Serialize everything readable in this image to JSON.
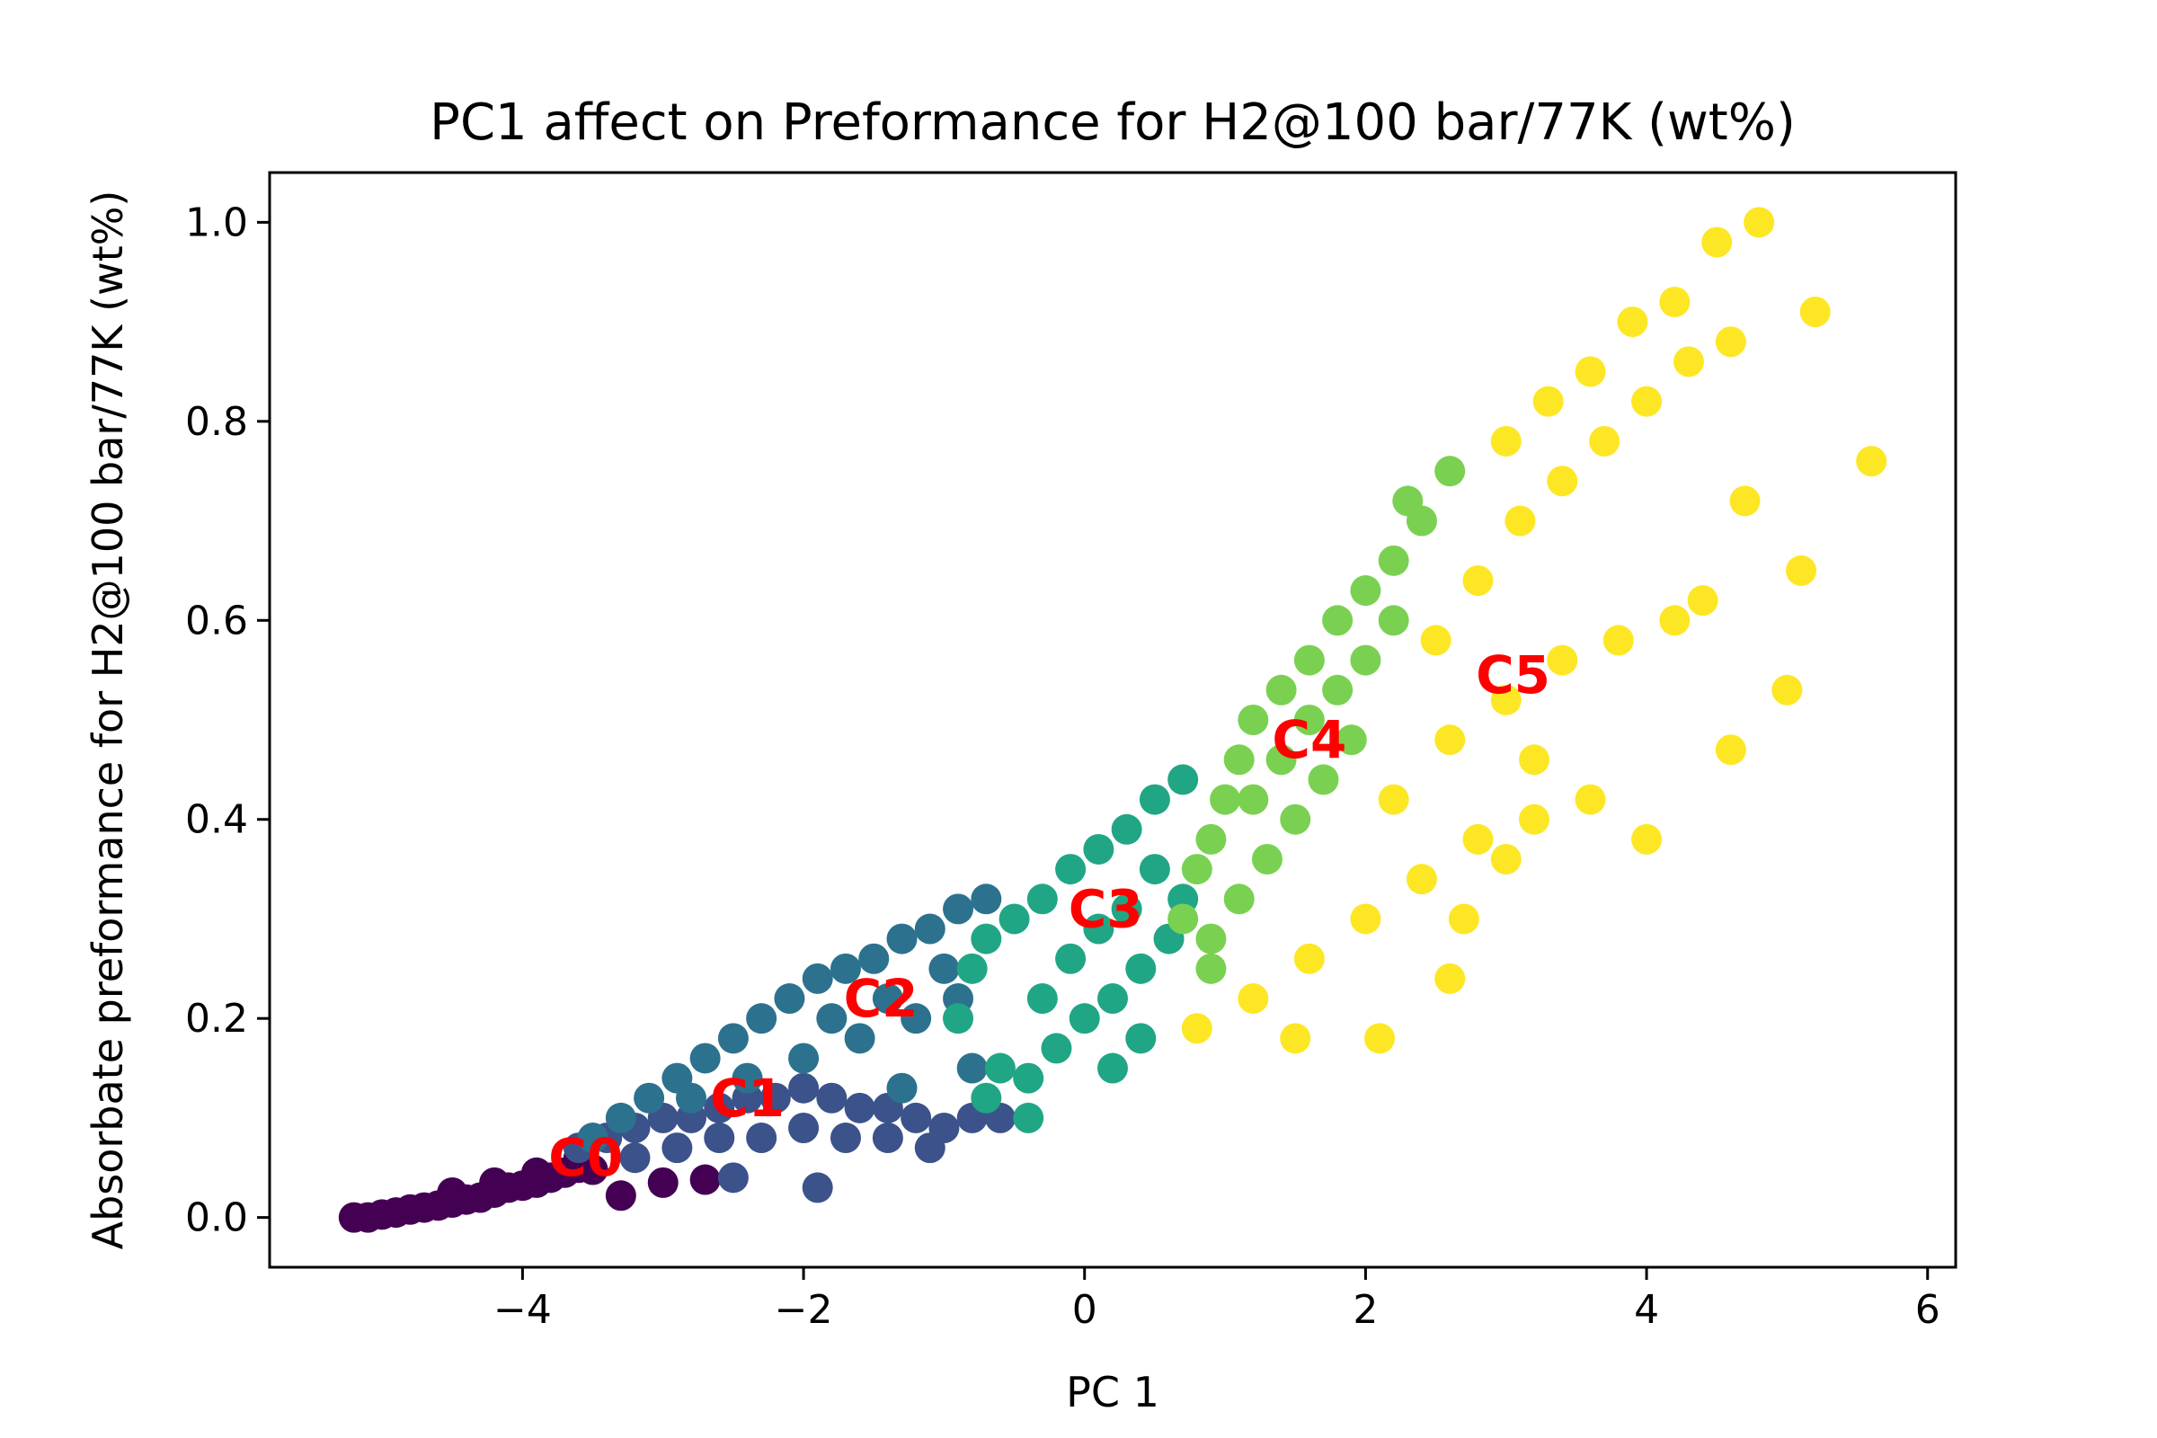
{
  "chart_data": {
    "type": "scatter",
    "title": "PC1 affect on Preformance for H2@100 bar/77K (wt%)",
    "xlabel": "PC 1",
    "ylabel": "Absorbate preformance for H2@100 bar/77K (wt%)",
    "xlim": [
      -5.8,
      6.2
    ],
    "ylim": [
      -0.05,
      1.05
    ],
    "xticks": [
      -4,
      -2,
      0,
      2,
      4,
      6
    ],
    "xtick_labels": [
      "−4",
      "−2",
      "0",
      "2",
      "4",
      "6"
    ],
    "yticks": [
      0.0,
      0.2,
      0.4,
      0.6,
      0.8,
      1.0
    ],
    "ytick_labels": [
      "0.0",
      "0.2",
      "0.4",
      "0.6",
      "0.8",
      "1.0"
    ],
    "grid": false,
    "series": [
      {
        "label": "C0",
        "color": "#440154",
        "points": [
          [
            -5.2,
            0.0
          ],
          [
            -5.1,
            0.0
          ],
          [
            -5.0,
            0.003
          ],
          [
            -4.9,
            0.005
          ],
          [
            -4.8,
            0.008
          ],
          [
            -4.7,
            0.01
          ],
          [
            -4.6,
            0.012
          ],
          [
            -4.5,
            0.015
          ],
          [
            -4.4,
            0.018
          ],
          [
            -4.3,
            0.02
          ],
          [
            -4.2,
            0.025
          ],
          [
            -4.1,
            0.03
          ],
          [
            -4.0,
            0.032
          ],
          [
            -3.9,
            0.035
          ],
          [
            -3.8,
            0.04
          ],
          [
            -3.7,
            0.045
          ],
          [
            -3.6,
            0.05
          ],
          [
            -3.5,
            0.048
          ],
          [
            -3.3,
            0.022
          ],
          [
            -3.0,
            0.035
          ],
          [
            -2.7,
            0.038
          ],
          [
            -4.5,
            0.025
          ],
          [
            -4.2,
            0.035
          ],
          [
            -3.9,
            0.045
          ],
          [
            -3.6,
            0.06
          ]
        ]
      },
      {
        "label": "C1",
        "color": "#3b528b",
        "points": [
          [
            -3.6,
            0.07
          ],
          [
            -3.4,
            0.08
          ],
          [
            -3.2,
            0.09
          ],
          [
            -3.0,
            0.1
          ],
          [
            -2.8,
            0.1
          ],
          [
            -2.6,
            0.11
          ],
          [
            -2.4,
            0.12
          ],
          [
            -2.2,
            0.12
          ],
          [
            -2.0,
            0.13
          ],
          [
            -1.8,
            0.12
          ],
          [
            -1.6,
            0.11
          ],
          [
            -1.4,
            0.11
          ],
          [
            -1.2,
            0.1
          ],
          [
            -1.0,
            0.09
          ],
          [
            -0.8,
            0.1
          ],
          [
            -0.6,
            0.1
          ],
          [
            -3.2,
            0.06
          ],
          [
            -2.9,
            0.07
          ],
          [
            -2.6,
            0.08
          ],
          [
            -2.3,
            0.08
          ],
          [
            -2.0,
            0.09
          ],
          [
            -1.7,
            0.08
          ],
          [
            -1.4,
            0.08
          ],
          [
            -1.1,
            0.07
          ],
          [
            -2.5,
            0.04
          ],
          [
            -1.9,
            0.03
          ]
        ]
      },
      {
        "label": "C2",
        "color": "#2c728e",
        "points": [
          [
            -3.5,
            0.08
          ],
          [
            -3.3,
            0.1
          ],
          [
            -3.1,
            0.12
          ],
          [
            -2.9,
            0.14
          ],
          [
            -2.7,
            0.16
          ],
          [
            -2.5,
            0.18
          ],
          [
            -2.3,
            0.2
          ],
          [
            -2.1,
            0.22
          ],
          [
            -1.9,
            0.24
          ],
          [
            -1.7,
            0.25
          ],
          [
            -1.5,
            0.26
          ],
          [
            -1.3,
            0.28
          ],
          [
            -1.1,
            0.29
          ],
          [
            -0.9,
            0.31
          ],
          [
            -0.7,
            0.32
          ],
          [
            -2.8,
            0.12
          ],
          [
            -2.4,
            0.14
          ],
          [
            -2.0,
            0.16
          ],
          [
            -1.6,
            0.18
          ],
          [
            -1.2,
            0.2
          ],
          [
            -0.9,
            0.22
          ],
          [
            -1.8,
            0.2
          ],
          [
            -1.4,
            0.22
          ],
          [
            -1.0,
            0.25
          ],
          [
            -0.8,
            0.15
          ],
          [
            -1.3,
            0.13
          ]
        ]
      },
      {
        "label": "C3",
        "color": "#21a685",
        "points": [
          [
            -0.9,
            0.2
          ],
          [
            -0.8,
            0.25
          ],
          [
            -0.7,
            0.28
          ],
          [
            -0.5,
            0.3
          ],
          [
            -0.3,
            0.32
          ],
          [
            -0.1,
            0.35
          ],
          [
            0.1,
            0.37
          ],
          [
            0.3,
            0.39
          ],
          [
            0.5,
            0.42
          ],
          [
            0.7,
            0.44
          ],
          [
            -0.6,
            0.15
          ],
          [
            -0.4,
            0.14
          ],
          [
            -0.2,
            0.17
          ],
          [
            0.0,
            0.2
          ],
          [
            0.2,
            0.22
          ],
          [
            0.4,
            0.25
          ],
          [
            0.6,
            0.28
          ],
          [
            0.7,
            0.32
          ],
          [
            0.5,
            0.35
          ],
          [
            -0.3,
            0.22
          ],
          [
            -0.1,
            0.26
          ],
          [
            0.1,
            0.29
          ],
          [
            0.3,
            0.31
          ],
          [
            0.2,
            0.15
          ],
          [
            0.4,
            0.18
          ],
          [
            -0.7,
            0.12
          ],
          [
            -0.4,
            0.1
          ]
        ]
      },
      {
        "label": "C4",
        "color": "#7ad151",
        "points": [
          [
            0.7,
            0.3
          ],
          [
            0.8,
            0.35
          ],
          [
            0.9,
            0.38
          ],
          [
            1.0,
            0.42
          ],
          [
            1.1,
            0.46
          ],
          [
            1.2,
            0.5
          ],
          [
            1.4,
            0.53
          ],
          [
            1.6,
            0.56
          ],
          [
            1.8,
            0.6
          ],
          [
            2.0,
            0.63
          ],
          [
            2.2,
            0.66
          ],
          [
            2.4,
            0.7
          ],
          [
            2.6,
            0.75
          ],
          [
            0.9,
            0.28
          ],
          [
            1.1,
            0.32
          ],
          [
            1.3,
            0.36
          ],
          [
            1.5,
            0.4
          ],
          [
            1.7,
            0.44
          ],
          [
            1.9,
            0.48
          ],
          [
            1.2,
            0.42
          ],
          [
            1.4,
            0.46
          ],
          [
            1.6,
            0.5
          ],
          [
            1.8,
            0.53
          ],
          [
            2.0,
            0.56
          ],
          [
            2.2,
            0.6
          ],
          [
            0.9,
            0.25
          ],
          [
            2.3,
            0.72
          ]
        ]
      },
      {
        "label": "C5",
        "color": "#fde725",
        "points": [
          [
            0.8,
            0.19
          ],
          [
            1.5,
            0.18
          ],
          [
            2.1,
            0.18
          ],
          [
            2.6,
            0.24
          ],
          [
            1.2,
            0.22
          ],
          [
            1.6,
            0.26
          ],
          [
            2.0,
            0.3
          ],
          [
            2.4,
            0.34
          ],
          [
            2.8,
            0.38
          ],
          [
            3.2,
            0.4
          ],
          [
            3.6,
            0.42
          ],
          [
            4.0,
            0.38
          ],
          [
            2.2,
            0.42
          ],
          [
            2.6,
            0.48
          ],
          [
            3.0,
            0.52
          ],
          [
            3.4,
            0.56
          ],
          [
            3.8,
            0.58
          ],
          [
            4.2,
            0.6
          ],
          [
            2.5,
            0.58
          ],
          [
            2.8,
            0.64
          ],
          [
            3.1,
            0.7
          ],
          [
            3.4,
            0.74
          ],
          [
            3.7,
            0.78
          ],
          [
            4.0,
            0.82
          ],
          [
            4.3,
            0.86
          ],
          [
            4.6,
            0.88
          ],
          [
            3.0,
            0.78
          ],
          [
            3.3,
            0.82
          ],
          [
            3.6,
            0.85
          ],
          [
            3.9,
            0.9
          ],
          [
            4.2,
            0.92
          ],
          [
            4.5,
            0.98
          ],
          [
            4.8,
            1.0
          ],
          [
            5.2,
            0.91
          ],
          [
            5.6,
            0.76
          ],
          [
            5.0,
            0.53
          ],
          [
            4.6,
            0.47
          ],
          [
            4.7,
            0.72
          ],
          [
            5.1,
            0.65
          ],
          [
            4.4,
            0.62
          ],
          [
            3.2,
            0.46
          ],
          [
            2.7,
            0.3
          ],
          [
            3.0,
            0.36
          ]
        ]
      }
    ],
    "annotations": [
      {
        "text": "C0",
        "x": -3.55,
        "y": 0.06
      },
      {
        "text": "C1",
        "x": -2.4,
        "y": 0.12
      },
      {
        "text": "C2",
        "x": -1.45,
        "y": 0.22
      },
      {
        "text": "C3",
        "x": 0.15,
        "y": 0.31
      },
      {
        "text": "C4",
        "x": 1.6,
        "y": 0.48
      },
      {
        "text": "C5",
        "x": 3.05,
        "y": 0.545
      }
    ]
  }
}
